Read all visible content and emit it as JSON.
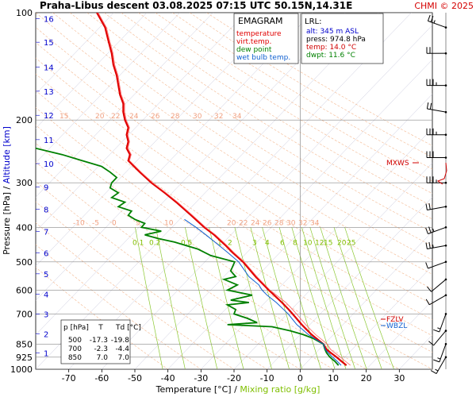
{
  "header": {
    "title": "Praha-Libus  descent  03.08.2025 07:15 UTC  50.15N,14.31E",
    "copyright": "CHMI © 2025"
  },
  "legend": {
    "title": "EMAGRAM",
    "items": [
      {
        "label": "temperature",
        "color": "#e00000"
      },
      {
        "label": "virt.temp.",
        "color": "#e00000"
      },
      {
        "label": "dew point",
        "color": "#008000"
      },
      {
        "label": "wet bulb temp.",
        "color": "#1060d0"
      }
    ]
  },
  "lrl": {
    "title": "LRL:",
    "lines": [
      {
        "text": "alt: 345 m ASL",
        "color": "#0000cc"
      },
      {
        "text": "press: 974.8 hPa",
        "color": "#000000"
      },
      {
        "text": "temp: 14.0 °C",
        "color": "#d00000"
      },
      {
        "text": "dwpt: 11.6 °C",
        "color": "#008000"
      }
    ]
  },
  "table": {
    "headers": [
      "p [hPa]",
      "T",
      "Td [°C]"
    ],
    "rows": [
      [
        "500",
        "-17.3",
        "-19.8"
      ],
      [
        "700",
        "-2.3",
        "-4.4"
      ],
      [
        "850",
        "7.0",
        "7.0"
      ]
    ]
  },
  "markers": {
    "mxws": "MXWS",
    "fzlv": "FZLV",
    "wbzl": "WBZL"
  },
  "chart_data": {
    "type": "line",
    "xlabel": "Temperature [°C]",
    "xlabel_sep": "/",
    "xlabel2": "Mixing ratio [g/kg]",
    "ylabel": "Pressure [hPa]",
    "ylabel_sep": "/",
    "ylabel2": "Altitude [km]",
    "xlim": [
      -80,
      40
    ],
    "ylim": [
      1000,
      100
    ],
    "y_scale": "log",
    "x_ticks": [
      -70,
      -60,
      -50,
      -40,
      -30,
      -20,
      -10,
      0,
      10,
      20,
      30
    ],
    "p_ticks": [
      100,
      200,
      300,
      400,
      500,
      600,
      700,
      850,
      925,
      1000
    ],
    "alt_ticks": [
      {
        "km": 1,
        "p": 900
      },
      {
        "km": 2,
        "p": 795
      },
      {
        "km": 3,
        "p": 701
      },
      {
        "km": 4,
        "p": 616
      },
      {
        "km": 5,
        "p": 540
      },
      {
        "km": 6,
        "p": 472
      },
      {
        "km": 7,
        "p": 411
      },
      {
        "km": 8,
        "p": 356
      },
      {
        "km": 9,
        "p": 308
      },
      {
        "km": 10,
        "p": 265
      },
      {
        "km": 11,
        "p": 227
      },
      {
        "km": 12,
        "p": 194
      },
      {
        "km": 13,
        "p": 166
      },
      {
        "km": 14,
        "p": 142
      },
      {
        "km": 15,
        "p": 121
      },
      {
        "km": 16,
        "p": 104
      }
    ],
    "dry_adiabat_labels_upper": [
      "15",
      "20",
      "22",
      "24",
      "26",
      "28",
      "30",
      "32",
      "34"
    ],
    "dry_adiabat_labels_lower": [
      "-10",
      "-5",
      "0",
      "5",
      "10",
      "20",
      "22",
      "24",
      "26",
      "28",
      "30",
      "32",
      "34"
    ],
    "mixing_ratio_labels": [
      "0.1",
      "0.2",
      "0.5",
      "1",
      "2",
      "3",
      "4",
      "6",
      "8",
      "10",
      "12",
      "15",
      "20",
      "25"
    ],
    "mixing_ratios": [
      0.1,
      0.2,
      0.5,
      1,
      2,
      3,
      4,
      6,
      8,
      10,
      12,
      15,
      20,
      25
    ],
    "series": [
      {
        "name": "temperature",
        "color": "#e00000",
        "p": [
          975,
          950,
          925,
          900,
          880,
          850,
          800,
          750,
          700,
          680,
          650,
          600,
          550,
          500,
          470,
          450,
          420,
          400,
          370,
          340,
          320,
          300,
          280,
          260,
          250,
          240,
          230,
          220,
          210,
          200,
          190,
          180,
          170,
          160,
          150,
          140,
          130,
          120,
          110,
          100
        ],
        "t": [
          14.0,
          12.5,
          11.0,
          9.3,
          8.0,
          7.0,
          3.5,
          0.5,
          -2.3,
          -3.5,
          -5.5,
          -9.5,
          -13.5,
          -17.3,
          -20.5,
          -22.5,
          -26.0,
          -29.0,
          -33.0,
          -37.5,
          -41.0,
          -45.0,
          -48.5,
          -52.0,
          -51.5,
          -52.5,
          -52.0,
          -52.5,
          -52.0,
          -53.0,
          -53.5,
          -53.5,
          -54.5,
          -55.0,
          -55.5,
          -56.5,
          -57.0,
          -58.0,
          -59.0,
          -61.5
        ]
      },
      {
        "name": "dew point",
        "color": "#008000",
        "p": [
          975,
          950,
          925,
          900,
          880,
          850,
          820,
          800,
          780,
          760,
          750,
          740,
          720,
          700,
          680,
          660,
          650,
          640,
          620,
          600,
          580,
          560,
          550,
          530,
          500,
          480,
          460,
          440,
          430,
          420,
          410,
          400,
          390,
          380,
          370,
          360,
          350,
          340,
          330,
          320,
          310,
          300,
          290,
          280,
          270,
          260,
          250,
          240,
          230
        ],
        "t": [
          11.6,
          10.5,
          9.0,
          8.0,
          7.5,
          7.0,
          4.0,
          1.0,
          -3.0,
          -8.5,
          -22.0,
          -13.0,
          -16.0,
          -20.0,
          -19.5,
          -22.0,
          -15.5,
          -21.0,
          -14.5,
          -22.0,
          -19.0,
          -23.0,
          -19.5,
          -21.0,
          -19.8,
          -27.0,
          -31.0,
          -38.0,
          -43.0,
          -47.0,
          -42.0,
          -48.0,
          -47.0,
          -50.0,
          -52.0,
          -51.0,
          -55.0,
          -53.0,
          -57.0,
          -55.0,
          -57.5,
          -57.0,
          -55.5,
          -57.5,
          -60.0,
          -66.0,
          -72.0,
          -80.0,
          -86.0
        ]
      },
      {
        "name": "wet bulb temp.",
        "color": "#1060d0",
        "p": [
          975,
          950,
          925,
          900,
          880,
          850,
          800,
          750,
          700,
          680,
          650,
          620,
          600,
          580,
          550,
          500,
          470,
          450,
          420,
          400,
          380
        ],
        "t": [
          12.4,
          11.2,
          9.8,
          8.5,
          7.6,
          7.0,
          2.5,
          -1.0,
          -3.6,
          -5.0,
          -7.2,
          -10.0,
          -11.5,
          -12.5,
          -15.5,
          -18.6,
          -22.0,
          -24.5,
          -28.5,
          -31.5,
          -35.0
        ]
      }
    ],
    "wind_barbs": [
      {
        "p": 110,
        "dir": 290,
        "spd": 15
      },
      {
        "p": 130,
        "dir": 270,
        "spd": 20
      },
      {
        "p": 160,
        "dir": 270,
        "spd": 25
      },
      {
        "p": 190,
        "dir": 280,
        "spd": 20
      },
      {
        "p": 220,
        "dir": 270,
        "spd": 25
      },
      {
        "p": 255,
        "dir": 270,
        "spd": 30
      },
      {
        "p": 300,
        "dir": 270,
        "spd": 25
      },
      {
        "p": 350,
        "dir": 260,
        "spd": 20
      },
      {
        "p": 400,
        "dir": 250,
        "spd": 15
      },
      {
        "p": 450,
        "dir": 260,
        "spd": 15
      },
      {
        "p": 500,
        "dir": 250,
        "spd": 10
      },
      {
        "p": 560,
        "dir": 230,
        "spd": 10
      },
      {
        "p": 620,
        "dir": 240,
        "spd": 10
      },
      {
        "p": 700,
        "dir": 200,
        "spd": 5
      },
      {
        "p": 780,
        "dir": 220,
        "spd": 10
      },
      {
        "p": 850,
        "dir": 200,
        "spd": 5
      },
      {
        "p": 925,
        "dir": 210,
        "spd": 5
      }
    ]
  }
}
